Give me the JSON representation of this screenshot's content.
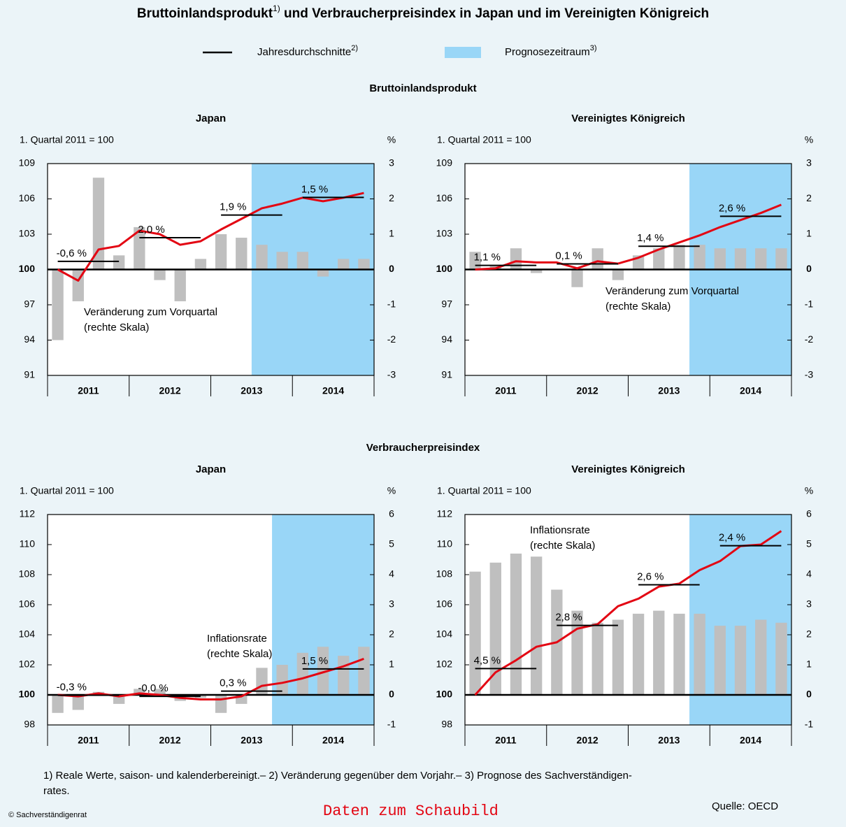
{
  "header": {
    "title": "Bruttoinlandsprodukt",
    "title_note": "1)",
    "title_rest": " und Verbraucherpreisindex in Japan und im Vereinigten Königreich"
  },
  "legend": {
    "items": [
      {
        "label": "Jahresdurchschnitte",
        "note": "2)",
        "color": "#000000"
      },
      {
        "label": "Prognosezeitraum",
        "note": "3)",
        "color": "#99d6f7"
      }
    ]
  },
  "sections": [
    "Bruttoinlandsprodukt",
    "Verbraucherpreisindex"
  ],
  "chart_data": [
    {
      "type": "combo",
      "title": "Japan",
      "ylabel": "1. Quartal 2011 = 100",
      "y2label": "%",
      "years": [
        "2011",
        "2012",
        "2013",
        "2014"
      ],
      "ylim": [
        91,
        109
      ],
      "yticks": [
        91,
        94,
        97,
        100,
        103,
        106,
        109
      ],
      "y2lim": [
        -3,
        3
      ],
      "y2ticks": [
        -3,
        -2,
        -1,
        0,
        1,
        2,
        3
      ],
      "forecast": {
        "from": 10,
        "color": "#99d6f7"
      },
      "series": [
        {
          "type": "bar",
          "axis": "y2",
          "color": "#bfbfbf",
          "values": [
            -2.0,
            -0.9,
            2.6,
            0.4,
            1.2,
            -0.3,
            -0.9,
            0.3,
            1.0,
            0.9,
            0.7,
            0.5,
            0.5,
            -0.2,
            0.3,
            0.3
          ]
        },
        {
          "type": "line",
          "color": "#e30613",
          "values": [
            100,
            99.05,
            101.7,
            102.0,
            103.3,
            103.0,
            102.1,
            102.4,
            103.4,
            104.3,
            105.2,
            105.6,
            106.1,
            105.8,
            106.1,
            106.5
          ]
        }
      ],
      "annual": {
        "color": "#000000",
        "values": [
          -0.6,
          2.0,
          1.9,
          1.5
        ],
        "value_labels": [
          "-0,6 %",
          "2,0 %",
          "1,9 %",
          "1,5 %"
        ]
      },
      "annotation": [
        "Veränderung zum Vorquartal",
        "(rechte Skala)"
      ]
    },
    {
      "type": "combo",
      "title": "Vereinigtes Königreich",
      "ylabel": "1. Quartal 2011 = 100",
      "y2label": "%",
      "years": [
        "2011",
        "2012",
        "2013",
        "2014"
      ],
      "ylim": [
        91,
        109
      ],
      "yticks": [
        91,
        94,
        97,
        100,
        103,
        106,
        109
      ],
      "y2lim": [
        -3,
        3
      ],
      "y2ticks": [
        -3,
        -2,
        -1,
        0,
        1,
        2,
        3
      ],
      "forecast": {
        "from": 11,
        "color": "#99d6f7"
      },
      "series": [
        {
          "type": "bar",
          "axis": "y2",
          "color": "#bfbfbf",
          "values": [
            0.5,
            0.1,
            0.6,
            -0.1,
            0.0,
            -0.5,
            0.6,
            -0.3,
            0.4,
            0.6,
            0.7,
            0.7,
            0.6,
            0.6,
            0.6,
            0.6
          ]
        },
        {
          "type": "line",
          "color": "#e30613",
          "values": [
            100,
            100.1,
            100.7,
            100.6,
            100.6,
            100.1,
            100.7,
            100.5,
            101.0,
            101.7,
            102.3,
            102.9,
            103.6,
            104.2,
            104.8,
            105.5
          ]
        }
      ],
      "annual": {
        "color": "#000000",
        "values": [
          1.1,
          0.1,
          1.4,
          2.6
        ],
        "value_labels": [
          "1,1 %",
          "0,1 %",
          "1,4 %",
          "2,6 %"
        ]
      },
      "annotation": [
        "Veränderung zum Vorquartal",
        "(rechte Skala)"
      ]
    },
    {
      "type": "combo",
      "title": "Japan",
      "ylabel": "1. Quartal 2011 = 100",
      "y2label": "%",
      "years": [
        "2011",
        "2012",
        "2013",
        "2014"
      ],
      "ylim": [
        98,
        112
      ],
      "yticks": [
        98,
        100,
        102,
        104,
        106,
        108,
        110,
        112
      ],
      "y2lim": [
        -1,
        6
      ],
      "y2ticks": [
        -1,
        0,
        1,
        2,
        3,
        4,
        5,
        6
      ],
      "forecast": {
        "from": 11,
        "color": "#99d6f7"
      },
      "series": [
        {
          "type": "bar",
          "axis": "y2",
          "color": "#bfbfbf",
          "values": [
            -0.6,
            -0.5,
            0.1,
            -0.3,
            0.2,
            0.2,
            -0.2,
            -0.1,
            -0.6,
            -0.3,
            0.9,
            1.0,
            1.4,
            1.6,
            1.3,
            1.6
          ]
        },
        {
          "type": "line",
          "color": "#e30613",
          "values": [
            100,
            99.9,
            100.1,
            99.9,
            100.1,
            100.0,
            99.8,
            99.7,
            99.7,
            99.9,
            100.6,
            100.8,
            101.1,
            101.5,
            101.9,
            102.4
          ]
        }
      ],
      "annual": {
        "color": "#000000",
        "values": [
          -0.3,
          -0.0,
          0.3,
          1.5
        ],
        "value_labels": [
          "-0,3 %",
          "-0,0 %",
          "0,3 %",
          "1,5 %"
        ]
      },
      "annotation": [
        "Inflationsrate",
        "(rechte Skala)"
      ]
    },
    {
      "type": "combo",
      "title": "Vereinigtes Königreich",
      "ylabel": "1. Quartal 2011 = 100",
      "y2label": "%",
      "years": [
        "2011",
        "2012",
        "2013",
        "2014"
      ],
      "ylim": [
        98,
        112
      ],
      "yticks": [
        98,
        100,
        102,
        104,
        106,
        108,
        110,
        112
      ],
      "y2lim": [
        -1,
        6
      ],
      "y2ticks": [
        -1,
        0,
        1,
        2,
        3,
        4,
        5,
        6
      ],
      "forecast": {
        "from": 11,
        "color": "#99d6f7"
      },
      "series": [
        {
          "type": "bar",
          "axis": "y2",
          "color": "#bfbfbf",
          "values": [
            4.1,
            4.4,
            4.7,
            4.6,
            3.5,
            2.8,
            2.4,
            2.5,
            2.7,
            2.8,
            2.7,
            2.7,
            2.3,
            2.3,
            2.5,
            2.4
          ]
        },
        {
          "type": "line",
          "color": "#e30613",
          "values": [
            100,
            101.5,
            102.3,
            103.2,
            103.5,
            104.4,
            104.7,
            105.9,
            106.4,
            107.2,
            107.4,
            108.3,
            108.9,
            109.9,
            110.0,
            110.9
          ]
        }
      ],
      "annual": {
        "color": "#000000",
        "values": [
          4.5,
          2.8,
          2.6,
          2.4
        ],
        "value_labels": [
          "4,5 %",
          "2,8 %",
          "2,6 %",
          "2,4 %"
        ]
      },
      "annotation": [
        "Inflationsrate",
        "(rechte Skala)"
      ]
    }
  ],
  "footer": {
    "notes": [
      "1) Reale Werte, saison- und kalenderbereinigt.– 2) Veränderung gegenüber dem Vorjahr.– 3) Prognose des Sachverständigen-",
      "rates."
    ],
    "source": "Quelle: OECD",
    "copyright": "© Sachverständigenrat",
    "link": "Daten zum Schaubild"
  }
}
